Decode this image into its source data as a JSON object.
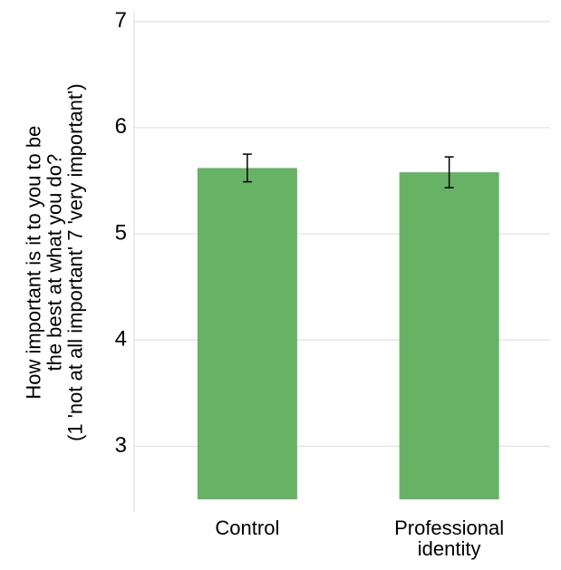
{
  "chart_data": {
    "type": "bar",
    "ylabel": "How important is it to you to be\nthe best at what you do?\n(1 'not at all important' 7 'very important')",
    "categories": [
      "Control",
      "Professional\nidentity"
    ],
    "values": [
      5.62,
      5.58
    ],
    "errors": [
      0.13,
      0.145
    ],
    "color": "#66b366",
    "ylim": [
      2.5,
      7.1
    ],
    "yticks": [
      3,
      4,
      5,
      6,
      7
    ],
    "grid": true
  }
}
